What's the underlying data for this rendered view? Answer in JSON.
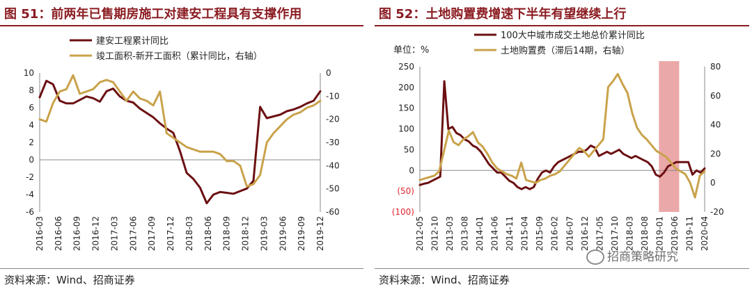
{
  "left": {
    "title": "图 51：前两年已售期房施工对建安工程具有支撑作用",
    "source": "资料来源：Wind、招商证券",
    "chart_data": {
      "type": "line",
      "title": "前两年已售期房施工对建安工程具有支撑作用",
      "x": [
        "2016-03",
        "2016-04",
        "2016-05",
        "2016-06",
        "2016-07",
        "2016-08",
        "2016-09",
        "2016-10",
        "2016-11",
        "2016-12",
        "2017-02",
        "2017-03",
        "2017-04",
        "2017-05",
        "2017-06",
        "2017-07",
        "2017-08",
        "2017-09",
        "2017-10",
        "2017-11",
        "2017-12",
        "2018-02",
        "2018-03",
        "2018-04",
        "2018-05",
        "2018-06",
        "2018-07",
        "2018-08",
        "2018-09",
        "2018-10",
        "2018-11",
        "2018-12",
        "2019-02",
        "2019-03",
        "2019-04",
        "2019-05",
        "2019-06",
        "2019-07",
        "2019-08",
        "2019-09",
        "2019-10",
        "2019-11",
        "2019-12"
      ],
      "x_tick_labels": [
        "2016-03",
        "2016-06",
        "2016-09",
        "2016-12",
        "2017-03",
        "2017-06",
        "2017-09",
        "2017-12",
        "2018-03",
        "2018-06",
        "2018-09",
        "2018-12",
        "2019-03",
        "2019-06",
        "2019-09",
        "2019-12"
      ],
      "series": [
        {
          "name": "建安工程累计同比",
          "axis": "left",
          "color": "#6b0f12",
          "values": [
            7.2,
            9.1,
            8.7,
            6.8,
            6.5,
            6.5,
            6.9,
            7.3,
            7.1,
            6.7,
            7.9,
            8.2,
            7.3,
            6.8,
            6.6,
            5.9,
            5.4,
            4.9,
            4.2,
            3.6,
            3.1,
            1.0,
            -1.5,
            -2.2,
            -3.2,
            -5.0,
            -4.0,
            -3.7,
            -3.8,
            -3.9,
            -3.6,
            -3.3,
            -2.4,
            6.1,
            4.8,
            5.0,
            5.2,
            5.6,
            5.8,
            6.1,
            6.5,
            6.8,
            7.9
          ]
        },
        {
          "name": "竣工面积-新开工面积（累计同比，右轴）",
          "axis": "right",
          "color": "#c9a24a",
          "values": [
            -20,
            -21,
            -13,
            -8,
            -7,
            -1,
            -9,
            -8,
            -7,
            -4,
            -3,
            -4,
            -8,
            -12,
            -8,
            -11,
            -12,
            -14,
            -8,
            -26,
            -28,
            -30,
            -32,
            -33,
            -34,
            -34,
            -34,
            -35,
            -38,
            -38,
            -40,
            -49,
            -48,
            -44,
            -30,
            -26,
            -23,
            -20,
            -18,
            -17,
            -15,
            -14,
            -12
          ]
        }
      ],
      "y_left": {
        "range": [
          -6,
          10
        ],
        "ticks": [
          "10",
          "8",
          "6",
          "4",
          "2",
          "0",
          "-2",
          "-4",
          "-6"
        ]
      },
      "y_right": {
        "range": [
          -60,
          0
        ],
        "ticks": [
          "0",
          "-10",
          "-20",
          "-30",
          "-40",
          "-50",
          "-60"
        ]
      }
    }
  },
  "right": {
    "title": "图 52：土地购置费增速下半年有望继续上行",
    "source": "资料来源：Wind、招商证券",
    "unit_label": "单位：%",
    "watermark": "招商策略研究",
    "chart_data": {
      "type": "line",
      "title": "土地购置费增速下半年有望继续上行",
      "unit": "%",
      "x_tick_labels": [
        "2012-05",
        "2012-10",
        "2013-03",
        "2013-08",
        "2014-01",
        "2014-06",
        "2014-11",
        "2015-04",
        "2015-09",
        "2016-02",
        "2016-07",
        "2016-12",
        "2017-05",
        "2017-10",
        "2018-03",
        "2018-08",
        "2019-01",
        "2019-06",
        "2019-11",
        "2020-04"
      ],
      "highlight": {
        "from": "2019-01",
        "to": "2019-07",
        "color": "#e79999"
      },
      "series": [
        {
          "name": "100大中城市成交土地总价累计同比",
          "axis": "left",
          "color": "#6b0f12",
          "values": [
            -35,
            -32,
            -30,
            -25,
            -20,
            -15,
            215,
            100,
            105,
            90,
            85,
            75,
            70,
            60,
            55,
            45,
            30,
            15,
            5,
            -5,
            -5,
            -15,
            -25,
            -30,
            -40,
            -45,
            -40,
            -45,
            -40,
            -20,
            -5,
            0,
            -5,
            10,
            20,
            25,
            30,
            35,
            40,
            45,
            45,
            50,
            60,
            55,
            35,
            40,
            45,
            40,
            45,
            50,
            40,
            35,
            30,
            35,
            30,
            25,
            20,
            10,
            -10,
            -15,
            -5,
            10,
            15,
            20,
            20,
            20,
            20,
            -10,
            0,
            -5,
            5
          ]
        },
        {
          "name": "土地购置费（滞后14期，右轴）",
          "axis": "right",
          "color": "#c9a24a",
          "values": [
            2,
            3,
            4,
            5,
            8,
            22,
            36,
            28,
            26,
            30,
            32,
            35,
            28,
            25,
            20,
            14,
            10,
            8,
            6,
            5,
            3,
            14,
            2,
            1,
            0,
            2,
            3,
            5,
            6,
            8,
            12,
            16,
            20,
            24,
            22,
            18,
            22,
            26,
            30,
            66,
            70,
            75,
            68,
            62,
            48,
            38,
            33,
            30,
            26,
            22,
            20,
            18,
            14,
            10,
            8,
            6,
            0,
            -10,
            5,
            8
          ]
        }
      ],
      "y_left": {
        "range": [
          -100,
          250
        ],
        "ticks": [
          "250",
          "200",
          "150",
          "100",
          "50",
          "0",
          "(50)",
          "(100)"
        ]
      },
      "y_right": {
        "range": [
          -20,
          80
        ],
        "ticks": [
          "80",
          "60",
          "40",
          "20",
          "0",
          "-20"
        ]
      }
    }
  }
}
